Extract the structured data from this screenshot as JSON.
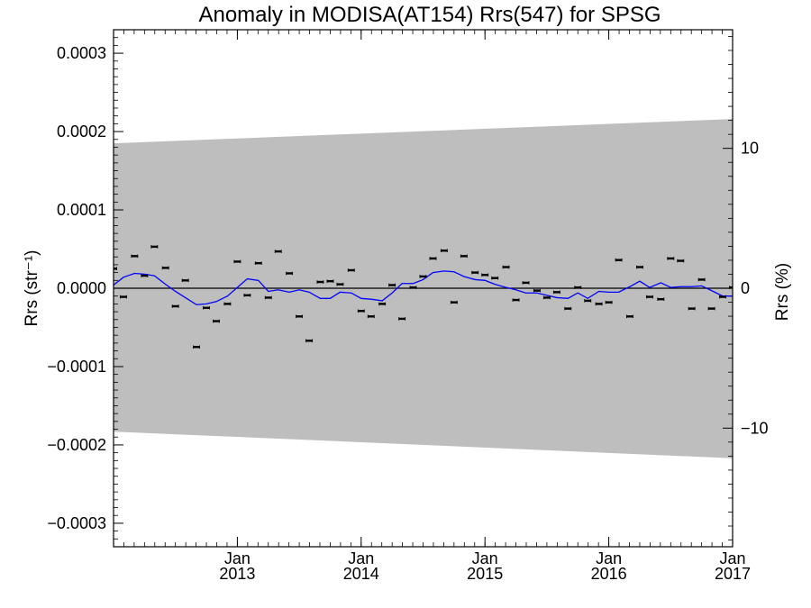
{
  "chart_data": {
    "type": "scatter",
    "title": "Anomaly in MODISA(AT154) Rrs(547) for SPSG",
    "ylabel_left": "Rrs (str⁻¹)",
    "ylabel_right": "Rrs (%)",
    "xlabel": "",
    "xlim": [
      2012.0,
      2017.0
    ],
    "ylim": [
      -0.00033,
      0.00033
    ],
    "ylim_right": [
      -18.48,
      18.48
    ],
    "grid": false,
    "legend": "none",
    "x_ticks": [
      {
        "value": 2013.0,
        "month": "Jan",
        "year": "2013"
      },
      {
        "value": 2014.0,
        "month": "Jan",
        "year": "2014"
      },
      {
        "value": 2015.0,
        "month": "Jan",
        "year": "2015"
      },
      {
        "value": 2016.0,
        "month": "Jan",
        "year": "2016"
      },
      {
        "value": 2017.0,
        "month": "Jan",
        "year": "2017"
      }
    ],
    "y_ticks_left": [
      {
        "value": 0.0003,
        "label": "0.0003"
      },
      {
        "value": 0.0002,
        "label": "0.0002"
      },
      {
        "value": 0.0001,
        "label": "0.0001"
      },
      {
        "value": 0.0,
        "label": "0.0000"
      },
      {
        "value": -0.0001,
        "label": "−0.0001"
      },
      {
        "value": -0.0002,
        "label": "−0.0002"
      },
      {
        "value": -0.0003,
        "label": "−0.0003"
      }
    ],
    "y_ticks_right": [
      {
        "value": 10,
        "label": "10"
      },
      {
        "value": 0,
        "label": "0"
      },
      {
        "value": -10,
        "label": "−10"
      }
    ],
    "band": {
      "x": [
        2012.0,
        2017.0
      ],
      "upper": [
        0.000185,
        0.000216
      ],
      "lower": [
        -0.000183,
        -0.000217
      ],
      "color": "#bebebe"
    },
    "zero_line_color": "#000000",
    "points": {
      "color": "#000000",
      "x": [
        2012.0,
        2012.08,
        2012.17,
        2012.25,
        2012.33,
        2012.42,
        2012.5,
        2012.58,
        2012.67,
        2012.75,
        2012.83,
        2012.92,
        2013.0,
        2013.08,
        2013.17,
        2013.25,
        2013.33,
        2013.42,
        2013.5,
        2013.58,
        2013.67,
        2013.75,
        2013.83,
        2013.92,
        2014.0,
        2014.08,
        2014.17,
        2014.25,
        2014.33,
        2014.42,
        2014.5,
        2014.58,
        2014.67,
        2014.75,
        2014.83,
        2014.92,
        2015.0,
        2015.08,
        2015.17,
        2015.25,
        2015.33,
        2015.42,
        2015.5,
        2015.58,
        2015.67,
        2015.75,
        2015.83,
        2015.92,
        2016.0,
        2016.08,
        2016.17,
        2016.25,
        2016.33,
        2016.42,
        2016.5,
        2016.58,
        2016.67,
        2016.75,
        2016.83,
        2016.92,
        2017.0
      ],
      "y": [
        2.5e-05,
        -1.1e-05,
        4.1e-05,
        1.6e-05,
        5.3e-05,
        2.6e-05,
        -2.3e-05,
        1e-05,
        -7.5e-05,
        -2.5e-05,
        -4.2e-05,
        -2e-05,
        3.4e-05,
        -9e-06,
        3.2e-05,
        -1.2e-05,
        4.7e-05,
        1.9e-05,
        -3.6e-05,
        -6.7e-05,
        8e-06,
        9e-06,
        5e-06,
        2.3e-05,
        -2.9e-05,
        -3.6e-05,
        -2e-05,
        4e-06,
        -3.9e-05,
        1e-06,
        1.5e-05,
        3.8e-05,
        4.8e-05,
        -1.8e-05,
        4.1e-05,
        2e-05,
        1.7e-05,
        1.3e-05,
        2.7e-05,
        -1.5e-05,
        7e-06,
        -3e-06,
        -1.2e-05,
        -5e-06,
        -2.6e-05,
        1e-06,
        -1.6e-05,
        -2e-05,
        -1.8e-05,
        3.6e-05,
        -3.6e-05,
        2.7e-05,
        -1.1e-05,
        -1.4e-05,
        3.8e-05,
        3.5e-05,
        -2.6e-05,
        1.1e-05,
        -2.6e-05,
        -1.1e-05,
        1e-06
      ]
    },
    "smooth_line": {
      "color": "#0000ff",
      "x": [
        2012.0,
        2012.08,
        2012.17,
        2012.25,
        2012.33,
        2012.42,
        2012.5,
        2012.58,
        2012.67,
        2012.75,
        2012.83,
        2012.92,
        2013.0,
        2013.08,
        2013.17,
        2013.25,
        2013.33,
        2013.42,
        2013.5,
        2013.58,
        2013.67,
        2013.75,
        2013.83,
        2013.92,
        2014.0,
        2014.08,
        2014.17,
        2014.25,
        2014.33,
        2014.42,
        2014.5,
        2014.58,
        2014.67,
        2014.75,
        2014.83,
        2014.92,
        2015.0,
        2015.08,
        2015.17,
        2015.25,
        2015.33,
        2015.42,
        2015.5,
        2015.58,
        2015.67,
        2015.75,
        2015.83,
        2015.92,
        2016.0,
        2016.08,
        2016.17,
        2016.25,
        2016.33,
        2016.42,
        2016.5,
        2016.58,
        2016.67,
        2016.75,
        2016.83,
        2016.92,
        2017.0
      ],
      "y": [
        4e-06,
        1.4e-05,
        1.9e-05,
        1.8e-05,
        1.6e-05,
        5e-06,
        -4e-06,
        -1.2e-05,
        -2.1e-05,
        -2e-05,
        -1.7e-05,
        -1e-05,
        1e-06,
        1.2e-05,
        1e-05,
        -4e-06,
        -2e-06,
        -5e-06,
        -2e-06,
        -5e-06,
        -1.3e-05,
        -1.3e-05,
        -5e-06,
        -6e-06,
        -1.3e-05,
        -1.4e-05,
        -1.6e-05,
        -6e-06,
        6e-06,
        6e-06,
        1.1e-05,
        2e-05,
        2.2e-05,
        2.1e-05,
        1.5e-05,
        1.1e-05,
        1e-05,
        5e-06,
        1e-06,
        -2e-06,
        -6e-06,
        -6e-06,
        -9e-06,
        -1.2e-05,
        -1.3e-05,
        -6e-06,
        -1.3e-05,
        -4e-06,
        -5e-06,
        -5e-06,
        2e-06,
        9e-06,
        1e-06,
        7e-06,
        1e-06,
        2e-06,
        2e-06,
        3e-06,
        -3e-06,
        -1e-05,
        -1e-05
      ]
    }
  }
}
